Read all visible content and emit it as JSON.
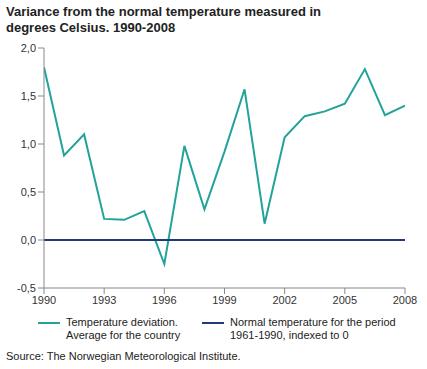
{
  "chart_data": {
    "type": "line",
    "title": "Variance from the normal temperature measured in degrees Celsius. 1990-2008",
    "source": "Source: The Norwegian Meteorological Institute.",
    "x": [
      1990,
      1991,
      1992,
      1993,
      1994,
      1995,
      1996,
      1997,
      1998,
      1999,
      2000,
      2001,
      2002,
      2003,
      2004,
      2005,
      2006,
      2007,
      2008
    ],
    "series": [
      {
        "name": "Temperature deviation. Average for the country",
        "color": "#22a39a",
        "values": [
          1.8,
          0.88,
          1.1,
          0.22,
          0.21,
          0.3,
          -0.25,
          0.98,
          0.32,
          0.92,
          1.57,
          0.17,
          1.07,
          1.29,
          1.34,
          1.42,
          1.78,
          1.3,
          1.4
        ]
      },
      {
        "name": "Normal temperature for the period 1961-1990, indexed to 0",
        "color": "#1f3a7a",
        "values": [
          0,
          0,
          0,
          0,
          0,
          0,
          0,
          0,
          0,
          0,
          0,
          0,
          0,
          0,
          0,
          0,
          0,
          0,
          0
        ]
      }
    ],
    "xlim": [
      1990,
      2008
    ],
    "xticks": [
      1990,
      1993,
      1996,
      1999,
      2002,
      2005,
      2008
    ],
    "ylim": [
      -0.5,
      2
    ],
    "yticks": [
      {
        "value": -0.5,
        "label": "-0,5"
      },
      {
        "value": 0,
        "label": "0,0"
      },
      {
        "value": 0.5,
        "label": "0,5"
      },
      {
        "value": 1,
        "label": "1,0"
      },
      {
        "value": 1.5,
        "label": "1,5"
      },
      {
        "value": 2,
        "label": "2,0"
      }
    ],
    "grid": false,
    "legend": "bottom"
  }
}
